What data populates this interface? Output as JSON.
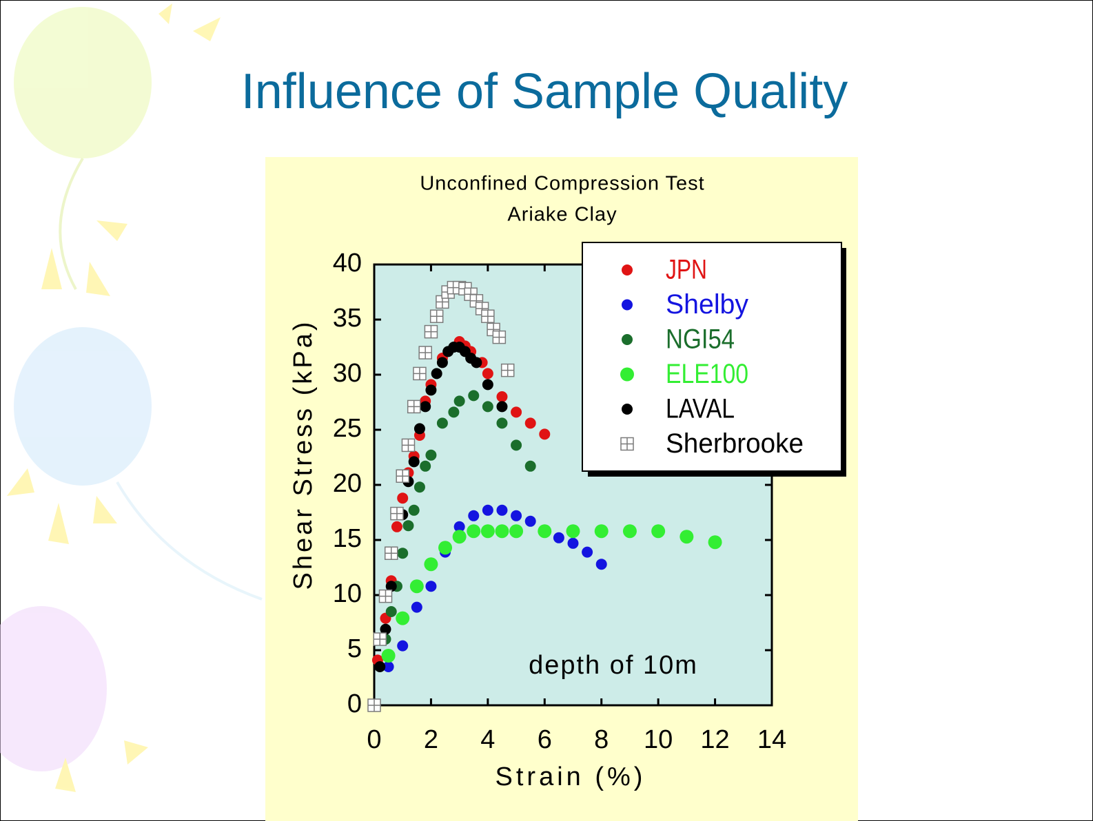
{
  "slide_title": "Influence of Sample Quality",
  "chart_data": {
    "type": "scatter",
    "title": "Unconfined Compression Test",
    "subtitle": "Ariake Clay",
    "x_label": "Strain (%)",
    "y_label": "Shear Stress (kPa)",
    "annotation": "depth of 10m",
    "xlim": [
      0,
      14
    ],
    "xticks": [
      0,
      2,
      4,
      6,
      8,
      10,
      12,
      14
    ],
    "ylim": [
      0,
      40
    ],
    "yticks": [
      0,
      5,
      10,
      15,
      20,
      25,
      30,
      35,
      40
    ],
    "legend": "upper right",
    "series": [
      {
        "name": "JPN",
        "color": "#e01414",
        "marker": "circle",
        "x": [
          0.12,
          0.4,
          0.6,
          0.8,
          1.0,
          1.2,
          1.4,
          1.6,
          1.8,
          2.0,
          2.4,
          3.0,
          3.2,
          3.4,
          3.8,
          4.0,
          4.5,
          5.0,
          5.5,
          6.0
        ],
        "values": [
          4.1,
          7.9,
          11.3,
          16.2,
          18.8,
          21.1,
          22.6,
          24.5,
          27.6,
          29.1,
          31.5,
          33.0,
          32.6,
          32.1,
          31.1,
          30.1,
          28.0,
          26.6,
          25.6,
          24.6
        ]
      },
      {
        "name": "Shelby",
        "color": "#1414e0",
        "marker": "circle",
        "x": [
          0.5,
          1.0,
          1.5,
          2.0,
          2.5,
          3.0,
          3.5,
          4.0,
          4.5,
          5.0,
          5.5,
          6.5,
          7.0,
          7.5,
          8.0
        ],
        "values": [
          3.5,
          5.4,
          8.9,
          10.8,
          13.9,
          16.2,
          17.2,
          17.7,
          17.7,
          17.2,
          16.7,
          15.2,
          14.7,
          13.9,
          12.8
        ]
      },
      {
        "name": "NGI54",
        "color": "#1b6e2c",
        "marker": "circle",
        "x": [
          0.4,
          0.6,
          0.8,
          1.0,
          1.2,
          1.4,
          1.6,
          1.8,
          2.0,
          2.4,
          2.8,
          3.0,
          3.5,
          4.0,
          4.5,
          5.0,
          5.5
        ],
        "values": [
          6.0,
          8.5,
          10.8,
          13.8,
          16.3,
          17.7,
          19.8,
          21.7,
          22.7,
          25.6,
          26.6,
          27.6,
          28.1,
          27.1,
          25.6,
          23.6,
          21.7
        ]
      },
      {
        "name": "ELE100",
        "color": "#33ee33",
        "marker": "big-circle",
        "x": [
          0.5,
          1.0,
          1.5,
          2.0,
          2.5,
          3.0,
          3.5,
          4.0,
          4.5,
          5.0,
          6.0,
          7.0,
          8.0,
          9.0,
          10.0,
          11.0,
          12.0
        ],
        "values": [
          4.5,
          7.9,
          10.8,
          12.8,
          14.3,
          15.3,
          15.8,
          15.8,
          15.8,
          15.8,
          15.8,
          15.8,
          15.8,
          15.8,
          15.8,
          15.3,
          14.8
        ]
      },
      {
        "name": "LAVAL",
        "color": "#000000",
        "marker": "circle",
        "x": [
          0.2,
          0.4,
          0.6,
          1.0,
          1.2,
          1.4,
          1.6,
          1.8,
          2.0,
          2.2,
          2.4,
          2.6,
          2.8,
          3.0,
          3.2,
          3.4,
          3.6,
          4.0,
          4.5
        ],
        "values": [
          3.5,
          6.9,
          10.8,
          17.3,
          20.3,
          22.1,
          25.1,
          27.1,
          28.6,
          30.1,
          31.1,
          32.1,
          32.5,
          32.5,
          32.1,
          31.5,
          31.1,
          29.1,
          27.1
        ]
      },
      {
        "name": "Sherbrooke",
        "color": "#7a7a7a",
        "marker": "square",
        "x": [
          0,
          0.2,
          0.4,
          0.6,
          0.8,
          1.0,
          1.2,
          1.4,
          1.6,
          1.8,
          2.0,
          2.2,
          2.4,
          2.6,
          2.8,
          3.0,
          3.2,
          3.4,
          3.6,
          3.8,
          4.0,
          4.2,
          4.4,
          4.7
        ],
        "values": [
          0,
          6.0,
          9.9,
          13.8,
          17.4,
          20.8,
          23.6,
          27.1,
          30.1,
          32.0,
          33.9,
          35.3,
          36.6,
          37.5,
          37.9,
          37.9,
          37.8,
          37.3,
          36.7,
          36.0,
          35.3,
          34.1,
          33.4,
          30.4
        ]
      }
    ]
  }
}
